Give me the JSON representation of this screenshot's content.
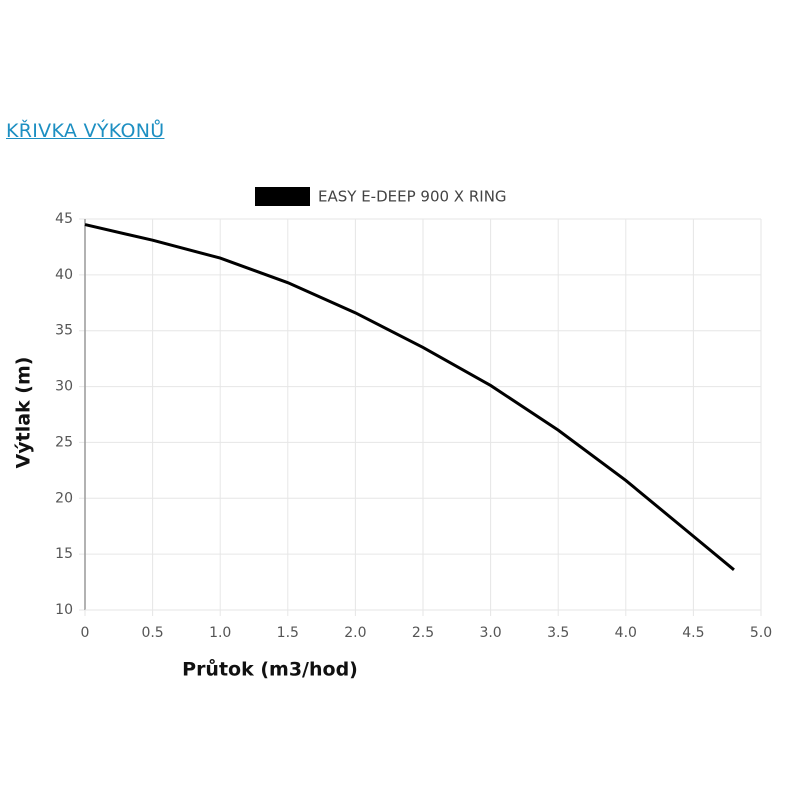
{
  "heading": "KŘIVKA VÝKONŮ",
  "chart_data": {
    "type": "line",
    "xlabel": "Průtok (m3/hod)",
    "ylabel": "Výtlak (m)",
    "x": [
      0,
      0.5,
      1.0,
      1.5,
      2.0,
      2.5,
      3.0,
      3.5,
      4.0,
      4.5,
      4.8
    ],
    "series": [
      {
        "name": "EASY E-DEEP 900 X RING",
        "color": "#000000",
        "values": [
          44.5,
          43.1,
          41.5,
          39.3,
          36.6,
          33.5,
          30.1,
          26.1,
          21.6,
          16.6,
          13.6
        ]
      }
    ],
    "xlim": [
      0,
      5
    ],
    "xticks": [
      0,
      0.5,
      {
        "value": 1,
        "label": "1.0"
      },
      1.5,
      {
        "value": 2,
        "label": "2.0"
      },
      2.5,
      {
        "value": 3,
        "label": "3.0"
      },
      3.5,
      {
        "value": 4,
        "label": "4.0"
      },
      4.5,
      {
        "value": 5,
        "label": "5.0"
      }
    ],
    "ylim": [
      10,
      45
    ],
    "yticks": [
      10,
      15,
      20,
      25,
      30,
      35,
      40,
      45
    ],
    "grid": true,
    "legend": "top"
  }
}
